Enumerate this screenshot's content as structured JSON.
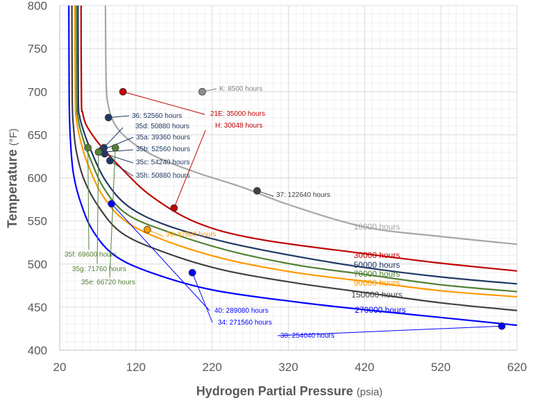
{
  "chart_data": {
    "type": "line",
    "title": "",
    "xlabel": "Hydrogen Partial Pressure",
    "xlabel_unit": "(psia)",
    "ylabel": "Temperature",
    "ylabel_unit": "(°F)",
    "xlim": [
      20,
      620
    ],
    "ylim": [
      400,
      800
    ],
    "x_ticks": [
      "20",
      "120",
      "220",
      "320",
      "420",
      "520",
      "620"
    ],
    "y_ticks": [
      "400",
      "450",
      "500",
      "550",
      "600",
      "650",
      "700",
      "750",
      "800"
    ],
    "grid": "major and minor",
    "series": [
      {
        "name": "10000 hours",
        "color": "#a6a6a6",
        "x": [
          80,
          81,
          84,
          90,
          100,
          120,
          150,
          200,
          260,
          320,
          420,
          520,
          620
        ],
        "y": [
          800,
          710,
          683,
          666,
          653,
          638,
          623,
          606,
          589,
          569,
          543,
          532,
          523
        ]
      },
      {
        "name": "30000 hours",
        "color": "#c00000",
        "x": [
          48,
          48.5,
          50,
          54,
          62,
          75,
          100,
          140,
          200,
          280,
          420,
          520,
          620
        ],
        "y": [
          800,
          690,
          676,
          663,
          651,
          636,
          612,
          579,
          548,
          529,
          512,
          501,
          492
        ]
      },
      {
        "name": "50000 hours",
        "color": "#1f3864",
        "x": [
          44,
          44.5,
          46,
          50,
          60,
          80,
          110,
          160,
          240,
          330,
          420,
          520,
          620
        ],
        "y": [
          800,
          690,
          672,
          658,
          634,
          597,
          567,
          545,
          525,
          509,
          496,
          485,
          477
        ]
      },
      {
        "name": "70000 hours",
        "color": "#538135",
        "x": [
          42,
          42.5,
          44,
          48,
          58,
          78,
          108,
          160,
          240,
          330,
          420,
          520,
          620
        ],
        "y": [
          800,
          690,
          670,
          653,
          627,
          588,
          558,
          538,
          516,
          499,
          488,
          476,
          468
        ]
      },
      {
        "name": "90000 hours",
        "color": "#ff9900",
        "x": [
          40,
          40.5,
          42,
          46,
          56,
          76,
          106,
          156,
          236,
          330,
          420,
          520,
          620
        ],
        "y": [
          800,
          690,
          668,
          648,
          618,
          580,
          550,
          528,
          506,
          490,
          480,
          469,
          462
        ]
      },
      {
        "name": "150000 hours",
        "color": "#404040",
        "x": [
          36,
          36.5,
          38,
          42,
          52,
          70,
          100,
          150,
          230,
          330,
          420,
          520,
          620
        ],
        "y": [
          800,
          690,
          660,
          630,
          598,
          568,
          537,
          516,
          494,
          478,
          467,
          455,
          446
        ]
      },
      {
        "name": "270000 hours",
        "color": "#0000ff",
        "x": [
          32,
          32.5,
          34,
          38,
          48,
          64,
          92,
          140,
          220,
          330,
          420,
          520,
          620
        ],
        "y": [
          800,
          690,
          645,
          605,
          570,
          538,
          510,
          490,
          470,
          456,
          447,
          438,
          429
        ]
      }
    ],
    "points": [
      {
        "label": "K: 8500 hours",
        "x": 207,
        "y": 700,
        "color": "#8c8c8c",
        "text_color": "#7f7f7f"
      },
      {
        "label": "21E: 35000 hours",
        "x": 103,
        "y": 700,
        "color": "#c00000",
        "text_color": "#c00000"
      },
      {
        "label": "H: 30048 hours",
        "x": 170,
        "y": 565,
        "color": "#c00000",
        "text_color": "#c00000"
      },
      {
        "label": "36: 52560 hours",
        "x": 84,
        "y": 670,
        "color": "#1f3864",
        "text_color": "#1f3864"
      },
      {
        "label": "35d: 50880 hours",
        "x": 78,
        "y": 635,
        "color": "#1f3864",
        "text_color": "#1f3864"
      },
      {
        "label": "35a: 39360 hours",
        "x": 75,
        "y": 632,
        "color": "#1f3864",
        "text_color": "#1f3864"
      },
      {
        "label": "35b: 52560 hours",
        "x": 76,
        "y": 630,
        "color": "#1f3864",
        "text_color": "#1f3864"
      },
      {
        "label": "35c: 54240 hours",
        "x": 79,
        "y": 628,
        "color": "#1f3864",
        "text_color": "#1f3864"
      },
      {
        "label": "35h: 50880 hours",
        "x": 86,
        "y": 620,
        "color": "#1f3864",
        "text_color": "#1f3864"
      },
      {
        "label": "37: 122640 hours",
        "x": 279,
        "y": 585,
        "color": "#404040",
        "text_color": "#404040"
      },
      {
        "label": "35f: 69600 hours",
        "x": 57,
        "y": 635,
        "color": "#538135",
        "text_color": "#538135"
      },
      {
        "label": "35g: 71760 hours",
        "x": 71,
        "y": 630,
        "color": "#538135",
        "text_color": "#538135"
      },
      {
        "label": "35e: 66720 hours",
        "x": 93,
        "y": 635,
        "color": "#538135",
        "text_color": "#538135"
      },
      {
        "label": "39: 87600 hours",
        "x": 135,
        "y": 540,
        "color": "#ff9900",
        "text_color": "#ff9900"
      },
      {
        "label": "40: 289080 hours",
        "x": 88,
        "y": 570,
        "color": "#0000ff",
        "text_color": "#0000ff"
      },
      {
        "label": "34: 271560 hours",
        "x": 194,
        "y": 490,
        "color": "#0000ff",
        "text_color": "#0000ff"
      },
      {
        "label": "38: 254040 hours",
        "x": 600,
        "y": 428,
        "color": "#0000ff",
        "text_color": "#0000ff"
      }
    ]
  }
}
